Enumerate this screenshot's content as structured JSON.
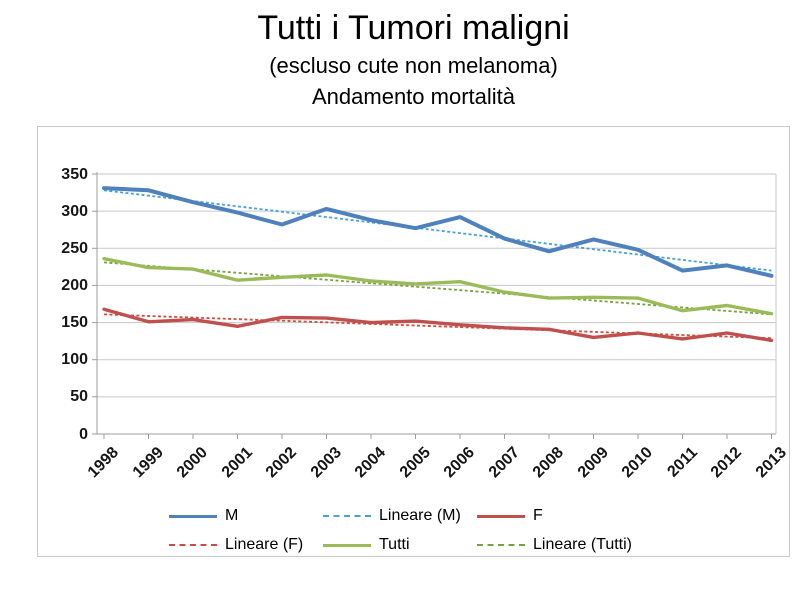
{
  "title": {
    "line1": "Tutti i Tumori maligni",
    "line2": "(escluso cute non melanoma)",
    "line3": "Andamento mortalità"
  },
  "chart_data": {
    "type": "line",
    "title": "Tutti i Tumori maligni (escluso cute non melanoma) – Andamento mortalità",
    "xlabel": "",
    "ylabel": "",
    "x": [
      1998,
      1999,
      2000,
      2001,
      2002,
      2003,
      2004,
      2005,
      2006,
      2007,
      2008,
      2009,
      2010,
      2011,
      2012,
      2013
    ],
    "ylim": [
      0,
      350
    ],
    "yticks": [
      0,
      50,
      100,
      150,
      200,
      250,
      300,
      350
    ],
    "grid": true,
    "legend_position": "bottom",
    "series": [
      {
        "name": "M",
        "style": "solid",
        "color": "#4f81bd",
        "values": [
          331,
          328,
          312,
          298,
          282,
          303,
          288,
          277,
          292,
          263,
          246,
          262,
          248,
          220,
          227,
          213
        ]
      },
      {
        "name": "Lineare (M)",
        "style": "dashed",
        "color": "#46a2d9",
        "trend_of": "M",
        "endpoints": [
          328,
          220
        ]
      },
      {
        "name": "F",
        "style": "solid",
        "color": "#c0504d",
        "values": [
          168,
          151,
          154,
          145,
          157,
          156,
          150,
          152,
          147,
          143,
          141,
          130,
          136,
          128,
          136,
          126
        ]
      },
      {
        "name": "Lineare (F)",
        "style": "dashed",
        "color": "#cf4a41",
        "trend_of": "F",
        "endpoints": [
          161,
          129
        ]
      },
      {
        "name": "Tutti",
        "style": "solid",
        "color": "#9bbb59",
        "values": [
          236,
          224,
          222,
          207,
          211,
          214,
          206,
          202,
          205,
          191,
          183,
          184,
          183,
          166,
          173,
          162
        ]
      },
      {
        "name": "Lineare (Tutti)",
        "style": "dashed",
        "color": "#7ba043",
        "trend_of": "Tutti",
        "endpoints": [
          231,
          161
        ]
      }
    ]
  },
  "legend": {
    "items": [
      {
        "label": "M",
        "series": "M",
        "row": 0,
        "col": 0
      },
      {
        "label": "Lineare (M)",
        "series": "Lineare (M)",
        "row": 0,
        "col": 1
      },
      {
        "label": "F",
        "series": "F",
        "row": 0,
        "col": 2
      },
      {
        "label": "Lineare (F)",
        "series": "Lineare (F)",
        "row": 1,
        "col": 0
      },
      {
        "label": "Tutti",
        "series": "Tutti",
        "row": 1,
        "col": 1
      },
      {
        "label": "Lineare (Tutti)",
        "series": "Lineare (Tutti)",
        "row": 1,
        "col": 2
      }
    ]
  },
  "colors": {
    "gridline": "#c7c7c7",
    "axis": "#9c9c9c",
    "frame_border": "#c9c9c9",
    "text": "#161616"
  }
}
